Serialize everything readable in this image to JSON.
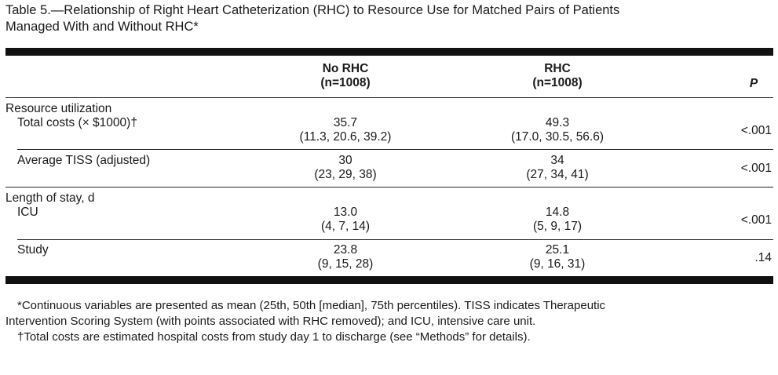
{
  "title": {
    "line1": "Table 5.—Relationship of Right Heart Catheterization (RHC) to Resource Use for Matched Pairs of Patients",
    "line2": "Managed With and Without RHC*"
  },
  "columns": {
    "no_rhc": {
      "label": "No RHC",
      "n": "(n=1008)"
    },
    "rhc": {
      "label": "RHC",
      "n": "(n=1008)"
    },
    "p": "P"
  },
  "sections": [
    {
      "heading": "Resource utilization",
      "rows": [
        {
          "label": "Total costs (× $1000)†",
          "no_rhc_mean": "35.7",
          "no_rhc_pct": "(11.3, 20.6, 39.2)",
          "rhc_mean": "49.3",
          "rhc_pct": "(17.0, 30.5, 56.6)",
          "p": "<.001"
        },
        {
          "label": "Average TISS (adjusted)",
          "no_rhc_mean": "30",
          "no_rhc_pct": "(23, 29, 38)",
          "rhc_mean": "34",
          "rhc_pct": "(27, 34, 41)",
          "p": "<.001"
        }
      ]
    },
    {
      "heading": "Length of stay, d",
      "rows": [
        {
          "label": "ICU",
          "no_rhc_mean": "13.0",
          "no_rhc_pct": "(4, 7, 14)",
          "rhc_mean": "14.8",
          "rhc_pct": "(5, 9, 17)",
          "p": "<.001"
        },
        {
          "label": "Study",
          "no_rhc_mean": "23.8",
          "no_rhc_pct": "(9, 15, 28)",
          "rhc_mean": "25.1",
          "rhc_pct": "(9, 16, 31)",
          "p": ".14"
        }
      ]
    }
  ],
  "footnotes": {
    "star_line1": "*Continuous variables are presented as mean (25th, 50th [median], 75th percentiles). TISS indicates Therapeutic",
    "star_line2": "Intervention Scoring System (with points associated with RHC removed); and ICU, intensive care unit.",
    "dagger": "†Total costs are estimated hospital costs from study day 1 to discharge (see “Methods” for details)."
  }
}
